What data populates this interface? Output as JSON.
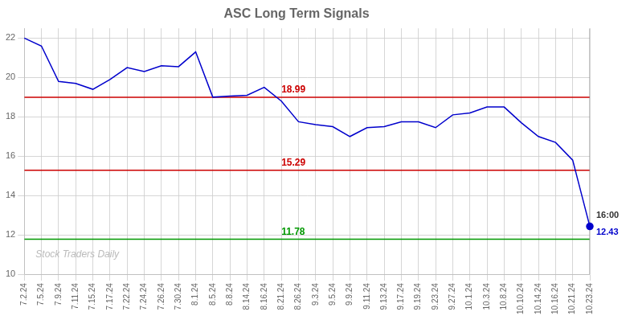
{
  "chart_data": {
    "type": "line",
    "title": "ASC Long Term Signals",
    "categories": [
      "7.2.24",
      "7.5.24",
      "7.9.24",
      "7.11.24",
      "7.15.24",
      "7.17.24",
      "7.22.24",
      "7.24.24",
      "7.26.24",
      "7.30.24",
      "8.1.24",
      "8.5.24",
      "8.8.24",
      "8.14.24",
      "8.16.24",
      "8.21.24",
      "8.26.24",
      "9.3.24",
      "9.5.24",
      "9.9.24",
      "9.11.24",
      "9.13.24",
      "9.17.24",
      "9.19.24",
      "9.23.24",
      "9.27.24",
      "10.1.24",
      "10.3.24",
      "10.8.24",
      "10.10.24",
      "10.14.24",
      "10.16.24",
      "10.21.24",
      "10.23.24"
    ],
    "values": [
      22.0,
      21.6,
      19.8,
      19.7,
      19.4,
      19.9,
      20.5,
      20.3,
      20.6,
      20.55,
      21.3,
      19.0,
      19.05,
      19.1,
      19.5,
      18.8,
      17.75,
      17.6,
      17.5,
      17.0,
      17.45,
      17.5,
      17.75,
      17.75,
      17.45,
      18.1,
      18.2,
      18.5,
      18.5,
      17.7,
      17.0,
      16.7,
      15.8,
      12.43
    ],
    "color": "#0000cc",
    "ylim": [
      10,
      22.5
    ],
    "yticks": [
      10,
      12,
      14,
      16,
      18,
      20,
      22
    ],
    "grid": true,
    "hlines": [
      {
        "y": 18.99,
        "color": "#cc0000",
        "label": "18.99"
      },
      {
        "y": 15.29,
        "color": "#cc0000",
        "label": "15.29"
      },
      {
        "y": 11.78,
        "color": "#009900",
        "label": "11.78"
      }
    ],
    "last_label": "16:00",
    "last_value": "12.43",
    "watermark": "Stock Traders Daily"
  }
}
